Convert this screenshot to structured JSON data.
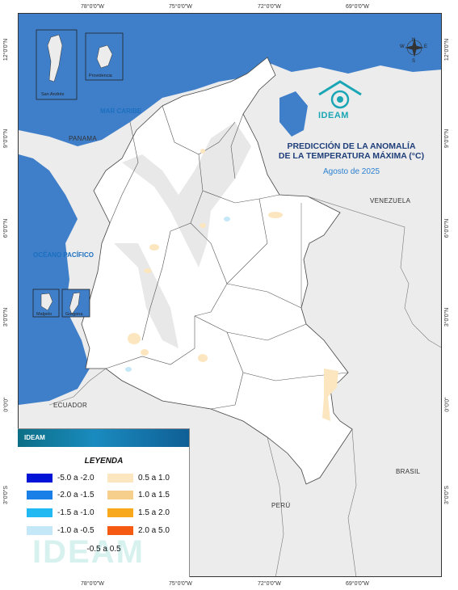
{
  "map": {
    "title_line1": "PREDICCIÓN DE LA ANOMALÍA",
    "title_line2": "DE LA TEMPERATURA MÁXIMA (°C)",
    "subtitle": "Agosto de 2025",
    "logo_text": "IDEAM",
    "compass_letters": {
      "n": "N",
      "s": "S",
      "e": "E",
      "w": "W"
    },
    "top_ticks": [
      "78°0'0\"W",
      "75°0'0\"W",
      "72°0'0\"W",
      "69°0'0\"W"
    ],
    "bottom_ticks": [
      "78°0'0\"W",
      "75°0'0\"W",
      "72°0'0\"W",
      "69°0'0\"W"
    ],
    "left_ticks": [
      "12°0'0\"N",
      "9°0'0\"N",
      "6°0'0\"N",
      "3°0'0\"N",
      "0°0'0\"",
      "3°0'0\"S"
    ],
    "right_ticks": [
      "12°0'0\"N",
      "9°0'0\"N",
      "6°0'0\"N",
      "3°0'0\"N",
      "0°0'0\"",
      "3°0'0\"S"
    ],
    "places": {
      "mar_caribe": "MAR CARIBE",
      "oceano_pacifico": "OCÉANO PACÍFICO",
      "panama": "PANAMA",
      "venezuela": "VENEZUELA",
      "ecuador": "ECUADOR",
      "brasil": "BRASIL",
      "peru": "PERÚ"
    },
    "insets": {
      "san_andres": "San Andrés",
      "providencia": "Providencia",
      "malpelo": "Malpelo",
      "gorgona": "Gorgona"
    }
  },
  "legend": {
    "title": "LEYENDA",
    "brand": "IDEAM",
    "left": [
      {
        "label": "-5.0 a -2.0",
        "color": "#0014d8"
      },
      {
        "label": "-2.0 a -1.5",
        "color": "#1a7fe6"
      },
      {
        "label": "-1.5 a -1.0",
        "color": "#22b8f2"
      },
      {
        "label": "-1.0 a -0.5",
        "color": "#c4e8f7"
      }
    ],
    "right": [
      {
        "label": "0.5 a 1.0",
        "color": "#fbe6bf"
      },
      {
        "label": "1.0 a 1.5",
        "color": "#f7cf8c"
      },
      {
        "label": "1.5 a 2.0",
        "color": "#f8a81c"
      },
      {
        "label": "2.0 a 5.0",
        "color": "#f45a12"
      }
    ],
    "center": "-0.5 a 0.5"
  }
}
